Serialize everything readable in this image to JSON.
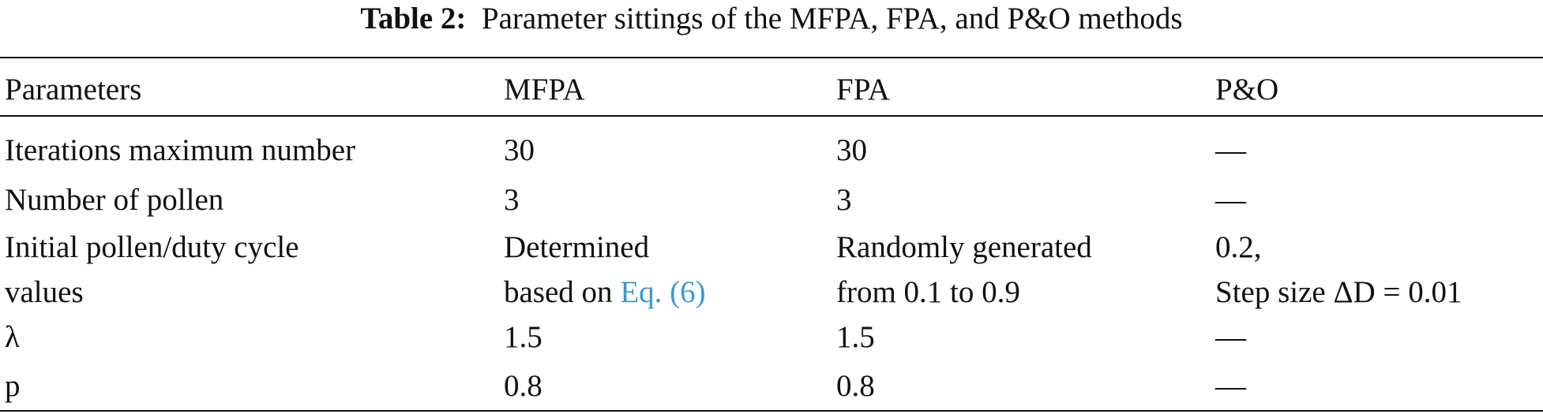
{
  "table": {
    "caption": {
      "label": "Table 2:",
      "text": "Parameter sittings of the MFPA, FPA, and P&O methods"
    },
    "header": [
      "Parameters",
      "MFPA",
      "FPA",
      "P&O"
    ],
    "rows": [
      [
        "Iterations maximum number",
        "30",
        "30",
        "—"
      ],
      [
        "Number of pollen",
        "3",
        "3",
        "—"
      ],
      [
        [
          "Initial pollen/duty cycle",
          "values"
        ],
        {
          "lines": [
            "Determined",
            "based on"
          ],
          "link": "Eq. (6)"
        },
        [
          "Randomly generated",
          "from 0.1 to 0.9"
        ],
        [
          "0.2,",
          "Step size ΔD = 0.01"
        ]
      ],
      [
        "λ",
        "1.5",
        "1.5",
        "—"
      ],
      [
        "p",
        "0.8",
        "0.8",
        "—"
      ]
    ]
  }
}
